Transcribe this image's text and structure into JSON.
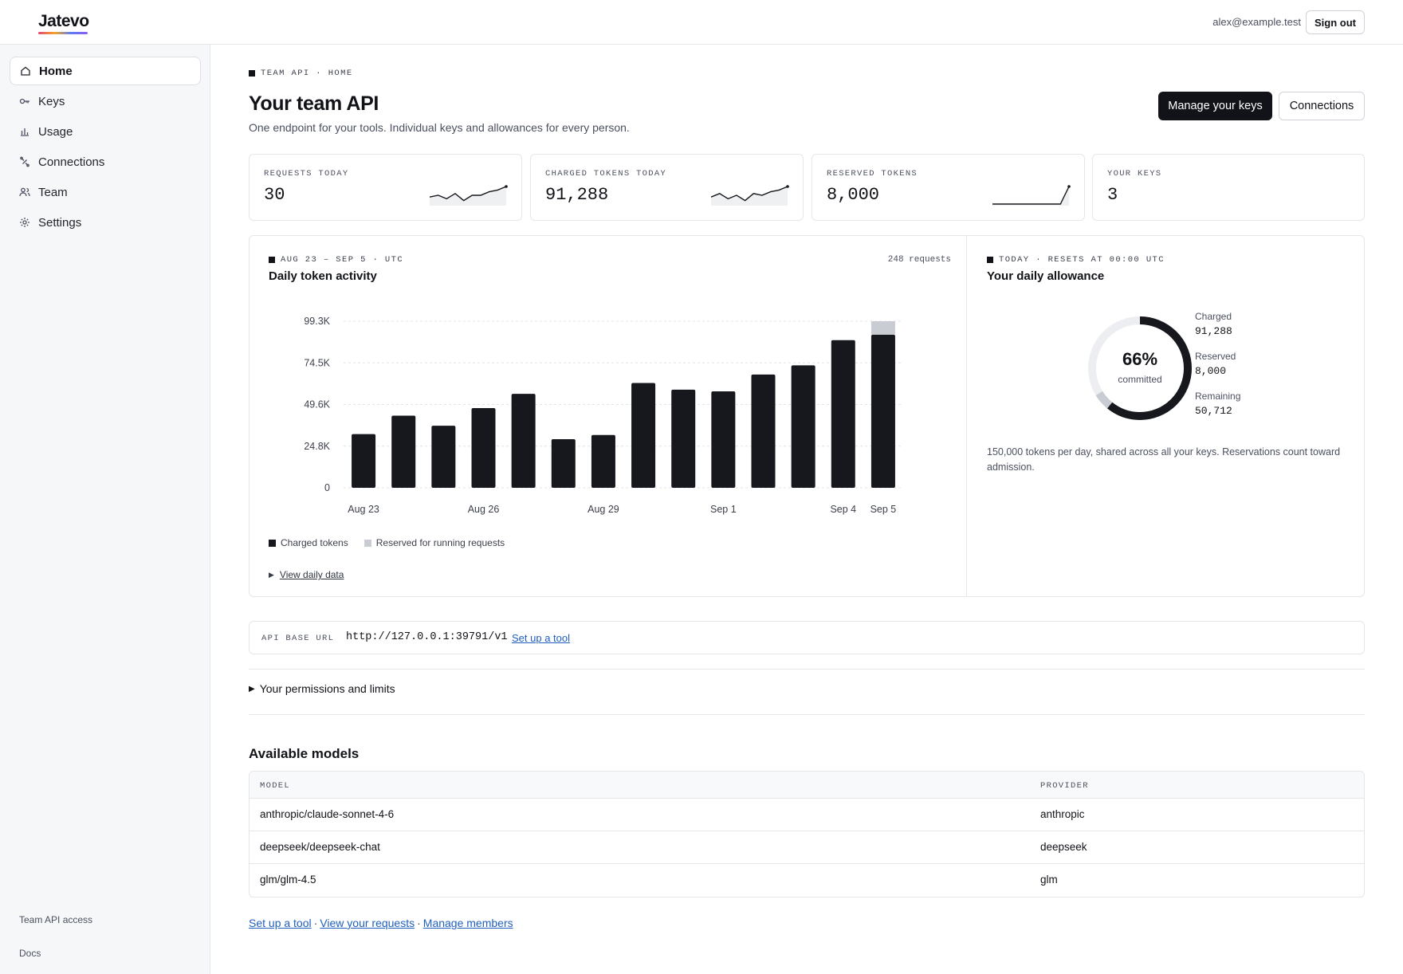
{
  "app": {
    "logo": "Jatevo",
    "user_email": "alex@example.test",
    "signout_label": "Sign out"
  },
  "sidebar": {
    "items": [
      {
        "label": "Home",
        "icon": "home-icon",
        "active": true
      },
      {
        "label": "Keys",
        "icon": "key-icon"
      },
      {
        "label": "Usage",
        "icon": "bar-chart-icon"
      },
      {
        "label": "Connections",
        "icon": "link-icon"
      },
      {
        "label": "Team",
        "icon": "users-icon"
      },
      {
        "label": "Settings",
        "icon": "gear-icon"
      }
    ],
    "footer_access": "Team API access",
    "footer_docs": "Docs"
  },
  "header": {
    "eyebrow": "TEAM API · HOME",
    "title": "Your team API",
    "subtitle": "One endpoint for your tools. Individual keys and allowances for every person.",
    "primary_button": "Manage your keys",
    "secondary_button": "Connections"
  },
  "stats": [
    {
      "label": "REQUESTS TODAY",
      "value": "30",
      "spark": [
        4,
        5,
        3,
        6,
        2,
        5,
        5,
        7,
        8,
        10
      ]
    },
    {
      "label": "CHARGED TOKENS TODAY",
      "value": "91,288",
      "spark": [
        4,
        6,
        3,
        5,
        2,
        6,
        5,
        7,
        8,
        10
      ]
    },
    {
      "label": "RESERVED TOKENS",
      "value": "8,000",
      "spark": [
        0,
        0,
        0,
        0,
        0,
        0,
        0,
        0,
        0,
        10
      ]
    },
    {
      "label": "YOUR KEYS",
      "value": "3"
    }
  ],
  "activity": {
    "eyebrow": "AUG 23 – SEP 5 · UTC",
    "count": "248 requests",
    "title": "Daily token activity",
    "legend_charged": "Charged tokens",
    "legend_reserved": "Reserved for running requests",
    "view_daily": "View daily data"
  },
  "chart_data": {
    "type": "bar",
    "stacked": true,
    "y_ticks": [
      "0",
      "24.8K",
      "49.6K",
      "74.5K",
      "99.3K"
    ],
    "x_labels": [
      "Aug 23",
      "Aug 26",
      "Aug 29",
      "Sep 1",
      "Sep 4",
      "Sep 5"
    ],
    "ylim": [
      0,
      99300
    ],
    "categories": [
      "Aug 23",
      "Aug 24",
      "Aug 25",
      "Aug 26",
      "Aug 27",
      "Aug 28",
      "Aug 29",
      "Aug 30",
      "Aug 31",
      "Sep 1",
      "Sep 2",
      "Sep 3",
      "Sep 4",
      "Sep 5"
    ],
    "series": [
      {
        "name": "Charged tokens",
        "color": "#16181d",
        "values": [
          32000,
          43000,
          37000,
          47500,
          56000,
          29000,
          31500,
          62500,
          58500,
          57500,
          67500,
          73000,
          88000,
          91288
        ]
      },
      {
        "name": "Reserved for running requests",
        "color": "#c9ccd2",
        "values": [
          0,
          0,
          0,
          0,
          0,
          0,
          0,
          0,
          0,
          0,
          0,
          0,
          0,
          8000
        ]
      }
    ],
    "grid": true,
    "legend": "bottom-left"
  },
  "allowance": {
    "eyebrow": "TODAY · RESETS AT 00:00 UTC",
    "title": "Your daily allowance",
    "percent": "66%",
    "caption": "committed",
    "charged_label": "Charged",
    "charged_value": "91,288",
    "reserved_label": "Reserved",
    "reserved_value": "8,000",
    "remaining_label": "Remaining",
    "remaining_value": "50,712",
    "total": 150000,
    "note": "150,000 tokens per day, shared across all your keys. Reservations count toward admission.",
    "colors": {
      "charged": "#16181d",
      "reserved": "#c9ccd2",
      "track": "#eceef1"
    }
  },
  "api": {
    "label": "API BASE URL",
    "url": "http://127.0.0.1:39791/v1",
    "link": "Set up a tool"
  },
  "permissions": {
    "label": "Your permissions and limits"
  },
  "models": {
    "title": "Available models",
    "col_model": "MODEL",
    "col_provider": "PROVIDER",
    "rows": [
      {
        "model": "anthropic/claude-sonnet-4-6",
        "provider": "anthropic"
      },
      {
        "model": "deepseek/deepseek-chat",
        "provider": "deepseek"
      },
      {
        "model": "glm/glm-4.5",
        "provider": "glm"
      }
    ]
  },
  "footer": {
    "link1": "Set up a tool",
    "link2": "View your requests",
    "link3": "Manage members",
    "sep": "·"
  }
}
